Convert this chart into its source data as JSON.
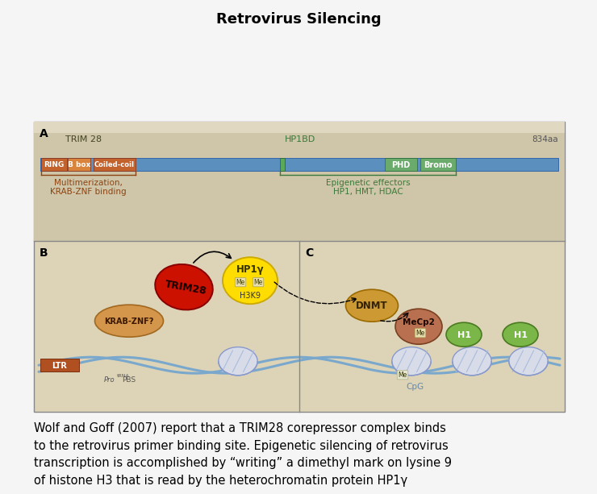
{
  "title": "Retrovirus Silencing",
  "title_fontsize": 13,
  "title_fontweight": "bold",
  "background_color": "#f5f5f5",
  "panel_bg_light": "#ddd4b8",
  "panel_bg_A": "#cfc5a8",
  "caption": "Wolf and Goff (2007) report that a TRIM28 corepressor complex binds\nto the retrovirus primer binding site. Epigenetic silencing of retrovirus\ntranscription is accomplished by “writing” a dimethyl mark on lysine 9\nof histone H3 that is read by the heterochromatin protein HP1γ",
  "caption_fontsize": 10.5,
  "bar_blue": "#5b8fbe",
  "ring_color": "#c4622d",
  "bbox_color": "#d9843a",
  "coiled_color": "#c4622d",
  "phd_color": "#6aaa6a",
  "bromo_color": "#6aaa6a",
  "hp1bd_green": "#5aaa5a",
  "multi_color": "#8b4513",
  "epigen_color": "#3a7a3a",
  "trim28_color": "#cc1100",
  "krab_color": "#d4964a",
  "hp1_color": "#ffdd00",
  "dnmt_color": "#cc9933",
  "mecp2_color": "#b87050",
  "h1_color": "#7ab648",
  "nuc_color": "#dde0ea",
  "nuc_edge": "#8899cc",
  "dna_color": "#7aa8cc",
  "ltr_color": "#b05020"
}
